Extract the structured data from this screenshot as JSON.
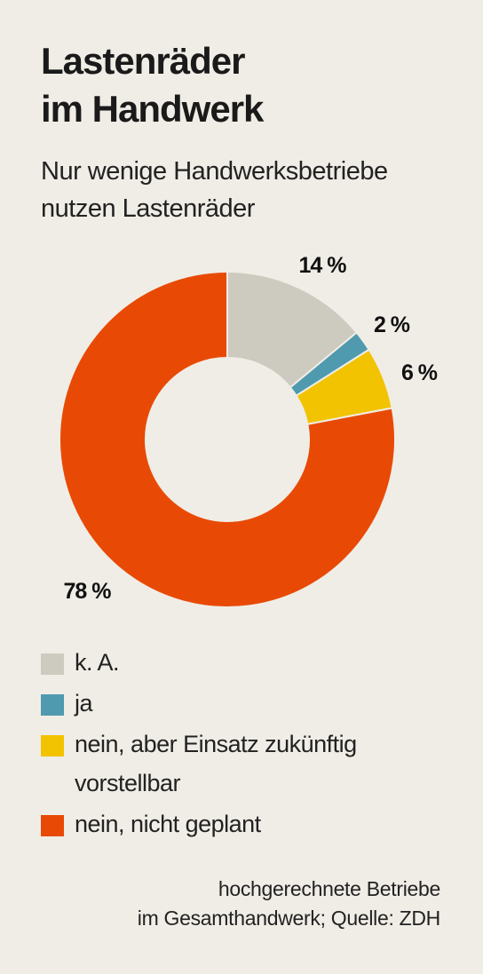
{
  "title": {
    "line1": "Lastenräder",
    "line2": "im Handwerk"
  },
  "subtitle": {
    "line1": "Nur wenige Handwerksbetriebe",
    "line2": "nutzen Lastenräder"
  },
  "legend": [
    {
      "label": "k. A.",
      "color": "#cdcbbf"
    },
    {
      "label": "ja",
      "color": "#4f9aae"
    },
    {
      "label": "nein, aber Einsatz zukünftig vorstellbar",
      "color": "#f2c300"
    },
    {
      "label": "nein, nicht geplant",
      "color": "#e84a05"
    }
  ],
  "source": {
    "line1": "hochgerechnete Betriebe",
    "line2": "im Gesamthandwerk; Quelle: ZDH"
  },
  "chart_data": {
    "type": "pie",
    "donut": true,
    "categories": [
      "k. A.",
      "ja",
      "nein, aber Einsatz zukünftig vorstellbar",
      "nein, nicht geplant"
    ],
    "values": [
      14,
      2,
      6,
      78
    ],
    "labels": [
      "14 %",
      "2 %",
      "6 %",
      "78 %"
    ],
    "colors": [
      "#cdcbbf",
      "#4f9aae",
      "#f2c300",
      "#e84a05"
    ],
    "unit": "%"
  }
}
